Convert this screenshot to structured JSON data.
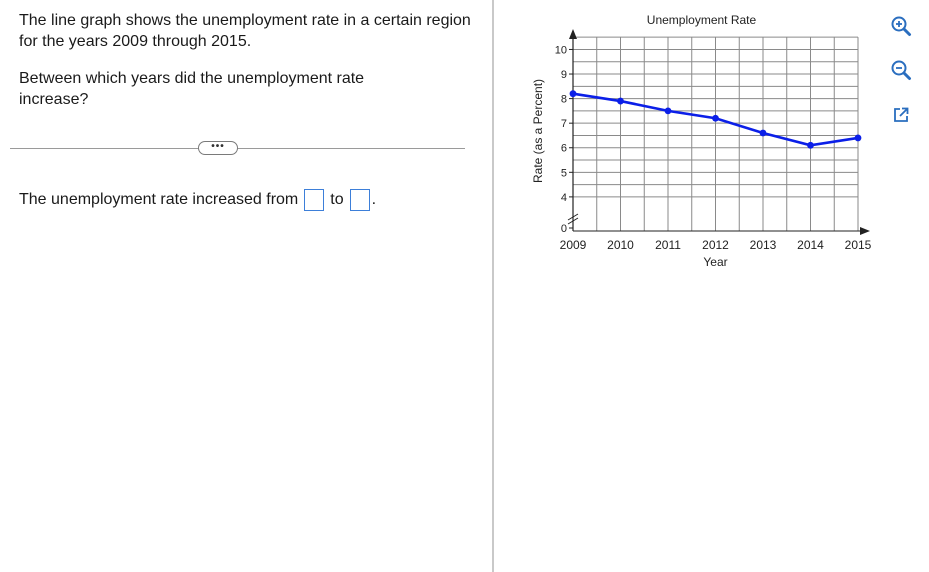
{
  "question": {
    "text": "The line graph shows the unemployment rate in a certain region for the years 2009 through 2015.",
    "prompt": "Between which years did the unemployment rate increase?",
    "more_label": "•••"
  },
  "answer": {
    "prefix": "The unemployment rate increased from",
    "middle": "to",
    "suffix": "."
  },
  "tools": {
    "zoom_in": "zoom-in-icon",
    "zoom_out": "zoom-out-icon",
    "popout": "popout-icon",
    "accent_color": "#2a6ebf"
  },
  "chart_data": {
    "type": "line",
    "title": "Unemployment Rate",
    "xlabel": "Year",
    "ylabel": "Rate (as a Percent)",
    "x": [
      2009,
      2010,
      2011,
      2012,
      2013,
      2014,
      2015
    ],
    "series": [
      {
        "values": [
          8.2,
          7.9,
          7.5,
          7.2,
          6.6,
          6.1,
          6.4
        ]
      }
    ],
    "y_ticks": [
      0,
      4,
      5,
      6,
      7,
      8,
      9,
      10
    ],
    "ylim": [
      3.5,
      10.5
    ],
    "axis_break": true,
    "grid": true,
    "line_color": "#0b1fe8",
    "grid_color": "#8a8a8a"
  }
}
